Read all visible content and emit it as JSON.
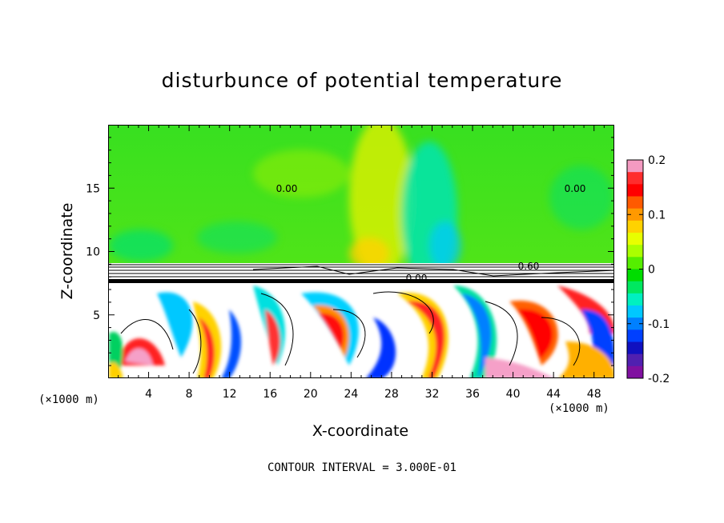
{
  "chart_data": {
    "type": "heatmap",
    "title": "disturbunce of potential temperature",
    "xlabel": "X-coordinate",
    "ylabel": "Z-coordinate",
    "x_unit": "(×1000 m)",
    "xlim": [
      0,
      50
    ],
    "ylim": [
      0,
      20
    ],
    "x_ticks": [
      4,
      8,
      12,
      16,
      20,
      24,
      28,
      32,
      36,
      40,
      44,
      48
    ],
    "y_ticks": [
      5,
      10,
      15
    ],
    "colorbar": {
      "range": [
        -0.2,
        0.2
      ],
      "tick_labels": [
        "0.2",
        "0.1",
        "0",
        "-0.1",
        "-0.2"
      ],
      "tick_values": [
        0.2,
        0.1,
        0,
        -0.1,
        -0.2
      ],
      "colors": [
        "#f49ac1",
        "#ff2d2d",
        "#ff0000",
        "#ff5a00",
        "#ff9900",
        "#ffd200",
        "#e8ff00",
        "#aaff00",
        "#55ee00",
        "#00dd00",
        "#00e860",
        "#00f0c0",
        "#00c8ff",
        "#0080ff",
        "#0040ff",
        "#1010c0",
        "#5020b0",
        "#8010a0"
      ]
    },
    "contour_labels": [
      "0.00",
      "0.60"
    ],
    "contour_interval": "CONTOUR INTERVAL = 3.000E-01"
  }
}
